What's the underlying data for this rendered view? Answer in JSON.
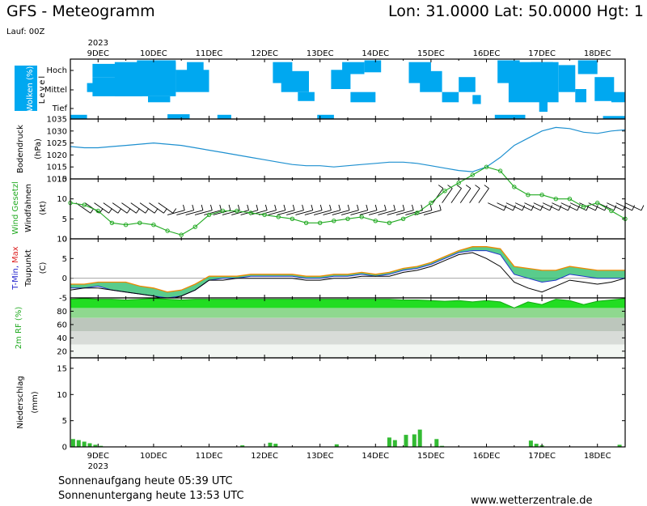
{
  "header": {
    "title": "GFS - Meteogramm",
    "location": "Lon: 31.0000 Lat: 50.0000 Hgt: 1",
    "run": "Lauf: 00Z"
  },
  "footer": {
    "sunrise": "Sonnenaufgang heute 05:39 UTC",
    "sunset": "Sonnenuntergang heute 13:53 UTC",
    "site": "www.wetterzentrale.de"
  },
  "colors": {
    "cloud": "#00a8f0",
    "pressure": "#1e90d0",
    "gust": "#22aa22",
    "tmin": "#2222cc",
    "tmax": "#dd2222",
    "rh_green": "#22dd22",
    "precip": "#33bb33"
  },
  "chart_data": [
    {
      "type": "heatmap",
      "panel": "clouds",
      "ylabel": "Wolken (%)",
      "level_label": "Level",
      "levels": [
        "Hoch",
        "Mittel",
        "Tief"
      ],
      "x_dates": [
        "9DEC",
        "10DEC",
        "11DEC",
        "12DEC",
        "13DEC",
        "14DEC",
        "15DEC",
        "16DEC",
        "17DEC",
        "18DEC"
      ],
      "year": "2023"
    },
    {
      "type": "line",
      "panel": "pressure",
      "ylabel": "Bodendruck",
      "unit": "(hPa)",
      "ylim": [
        1010,
        1035
      ],
      "yticks": [
        1010,
        1015,
        1020,
        1025,
        1030,
        1035
      ],
      "x_days": [
        0,
        0.5,
        1,
        1.5,
        2,
        2.5,
        3,
        3.5,
        4,
        4.5,
        5,
        5.5,
        6,
        6.5,
        7,
        7.5,
        8,
        8.5,
        9,
        9.5,
        10,
        10.5,
        11,
        11.5,
        12,
        12.5,
        13,
        13.5,
        14,
        14.5,
        15,
        15.5,
        16,
        16.5,
        17,
        17.5,
        18,
        18.5,
        19,
        19.5,
        20
      ],
      "values": [
        1023.5,
        1023,
        1023,
        1023.5,
        1024,
        1024.5,
        1025,
        1024.5,
        1024,
        1023,
        1022,
        1021,
        1020,
        1019,
        1018,
        1017,
        1016,
        1015.5,
        1015.5,
        1015,
        1015.5,
        1016,
        1016.5,
        1017,
        1017,
        1016.5,
        1015.5,
        1014.5,
        1013.5,
        1013,
        1015,
        1019,
        1024,
        1027,
        1030,
        1031.5,
        1031,
        1029.5,
        1029,
        1030,
        1030.5
      ]
    },
    {
      "type": "line",
      "panel": "wind",
      "ylabel": "Windfahnen",
      "ylabel2": "Wind Gesetzl",
      "unit": "(kt)",
      "ylim": [
        0,
        15
      ],
      "yticks": [
        0,
        5,
        10,
        15
      ],
      "series": [
        {
          "name": "Wind Gesetzl",
          "x_days": [
            0,
            0.5,
            1,
            1.5,
            2,
            2.5,
            3,
            3.5,
            4,
            4.5,
            5,
            5.5,
            6,
            6.5,
            7,
            7.5,
            8,
            8.5,
            9,
            9.5,
            10,
            10.5,
            11,
            11.5,
            12,
            12.5,
            13,
            13.5,
            14,
            14.5,
            15,
            15.5,
            16,
            16.5,
            17,
            17.5,
            18,
            18.5,
            19,
            19.5,
            20
          ],
          "values": [
            9,
            8.5,
            7,
            4,
            3.5,
            4,
            3.5,
            2,
            1,
            3,
            6,
            7,
            7,
            6.5,
            6,
            5.5,
            5,
            4,
            4,
            4.5,
            5,
            5.5,
            4.5,
            4,
            5,
            6.5,
            9,
            12,
            14,
            16,
            18,
            17,
            13,
            11,
            11,
            10,
            10,
            8,
            9,
            7,
            5
          ]
        }
      ]
    },
    {
      "type": "line",
      "panel": "temperature",
      "ylabel": "Taupunkt",
      "ylabel2_parts": [
        "T-Min,",
        "Max"
      ],
      "unit": "(C)",
      "ylim": [
        -5,
        10
      ],
      "yticks": [
        -5,
        0,
        5,
        10
      ],
      "series": [
        {
          "name": "T-Max",
          "x_days": [
            0,
            0.5,
            1,
            1.5,
            2,
            2.5,
            3,
            3.5,
            4,
            4.5,
            5,
            5.5,
            6,
            6.5,
            7,
            7.5,
            8,
            8.5,
            9,
            9.5,
            10,
            10.5,
            11,
            11.5,
            12,
            12.5,
            13,
            13.5,
            14,
            14.5,
            15,
            15.5,
            16,
            16.5,
            17,
            17.5,
            18,
            18.5,
            19,
            19.5,
            20
          ],
          "values": [
            -1.5,
            -1.5,
            -1,
            -1,
            -1,
            -2,
            -2.5,
            -3.5,
            -3,
            -1.5,
            0.5,
            0.5,
            0.5,
            1,
            1,
            1,
            1,
            0.5,
            0.5,
            1,
            1,
            1.5,
            1,
            1.5,
            2.5,
            3,
            4,
            5.5,
            7,
            8,
            8,
            7.5,
            3,
            2.5,
            2,
            2,
            3,
            2.5,
            2,
            2,
            2
          ]
        },
        {
          "name": "T-Min",
          "x_days": [
            0,
            0.5,
            1,
            1.5,
            2,
            2.5,
            3,
            3.5,
            4,
            4.5,
            5,
            5.5,
            6,
            6.5,
            7,
            7.5,
            8,
            8.5,
            9,
            9.5,
            10,
            10.5,
            11,
            11.5,
            12,
            12.5,
            13,
            13.5,
            14,
            14.5,
            15,
            15.5,
            16,
            16.5,
            17,
            17.5,
            18,
            18.5,
            19,
            19.5,
            20
          ],
          "values": [
            -2.5,
            -2.5,
            -2,
            -3,
            -3.5,
            -4,
            -4.5,
            -5,
            -4.5,
            -3,
            -0.5,
            0,
            0,
            0.5,
            0.5,
            0.5,
            0.5,
            0,
            0,
            0.5,
            0.5,
            1,
            0.5,
            1,
            2,
            2.5,
            3.5,
            5,
            6.5,
            7,
            7,
            6,
            1,
            0,
            -1,
            -0.5,
            1,
            0.5,
            0,
            0,
            0
          ]
        },
        {
          "name": "Taupunkt",
          "x_days": [
            0,
            0.5,
            1,
            1.5,
            2,
            2.5,
            3,
            3.5,
            4,
            4.5,
            5,
            5.5,
            6,
            6.5,
            7,
            7.5,
            8,
            8.5,
            9,
            9.5,
            10,
            10.5,
            11,
            11.5,
            12,
            12.5,
            13,
            13.5,
            14,
            14.5,
            15,
            15.5,
            16,
            16.5,
            17,
            17.5,
            18,
            18.5,
            19,
            19.5,
            20
          ],
          "values": [
            -3,
            -2.5,
            -2.5,
            -3,
            -3.5,
            -4,
            -4.5,
            -5.5,
            -4.5,
            -3,
            -0.5,
            -0.5,
            0,
            0,
            0,
            0,
            0,
            -0.5,
            -0.5,
            0,
            0,
            0.5,
            0.5,
            0.5,
            1.5,
            2,
            3,
            4.5,
            6,
            6.5,
            5,
            3,
            -1,
            -2.5,
            -3.5,
            -2,
            -0.5,
            -1,
            -1.5,
            -1,
            0
          ]
        }
      ]
    },
    {
      "type": "area",
      "panel": "humidity",
      "ylabel": "2m RF (%)",
      "ylim": [
        10,
        100
      ],
      "yticks": [
        20,
        40,
        60,
        80
      ],
      "x_days": [
        0,
        0.5,
        1,
        1.5,
        2,
        2.5,
        3,
        3.5,
        4,
        4.5,
        5,
        5.5,
        6,
        6.5,
        7,
        7.5,
        8,
        8.5,
        9,
        9.5,
        10,
        10.5,
        11,
        11.5,
        12,
        12.5,
        13,
        13.5,
        14,
        14.5,
        15,
        15.5,
        16,
        16.5,
        17,
        17.5,
        18,
        18.5,
        19,
        19.5,
        20
      ],
      "values": [
        98,
        99,
        98,
        98,
        97,
        98,
        99,
        98,
        97,
        98,
        98,
        98,
        98,
        98,
        98,
        98,
        98,
        98,
        98,
        98,
        98,
        98,
        98,
        98,
        97,
        97,
        96,
        95,
        96,
        94,
        96,
        94,
        85,
        94,
        90,
        98,
        96,
        90,
        95,
        97,
        99
      ]
    },
    {
      "type": "bar",
      "panel": "precip",
      "ylabel": "Niederschlag",
      "unit": "(mm)",
      "ylim": [
        0,
        17
      ],
      "yticks": [
        0,
        5,
        10,
        15
      ],
      "x_days": [
        0.1,
        0.3,
        0.5,
        0.7,
        0.9,
        1.1,
        6.2,
        7.2,
        7.4,
        9.6,
        11.5,
        11.7,
        12.1,
        12.4,
        12.6,
        13.2,
        13.4,
        16.6,
        16.8,
        17.0,
        19.8
      ],
      "values": [
        1.5,
        1.3,
        1.0,
        0.7,
        0.4,
        0.2,
        0.3,
        0.8,
        0.6,
        0.5,
        1.8,
        1.3,
        2.3,
        2.4,
        3.3,
        1.5,
        0.2,
        1.2,
        0.6,
        0.3,
        0.4
      ]
    }
  ]
}
